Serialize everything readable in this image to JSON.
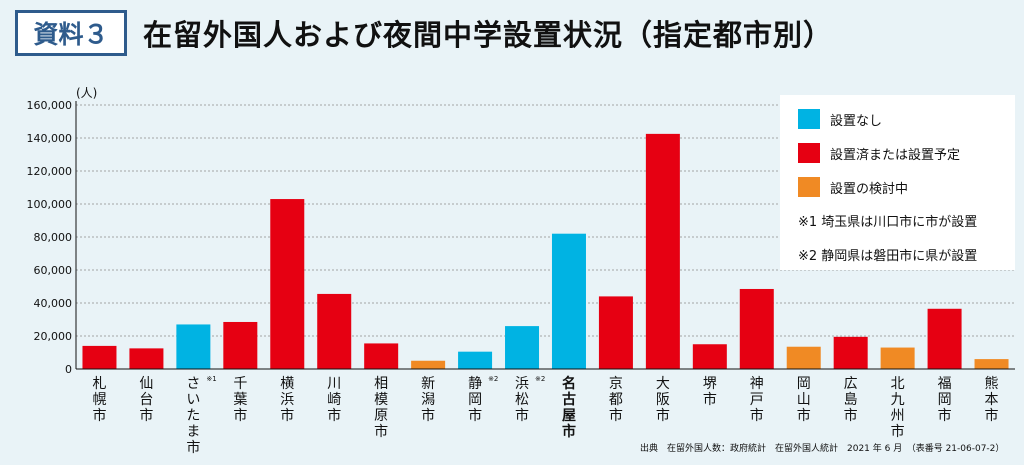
{
  "header": {
    "tag": "資料３",
    "title": "在留外国人および夜間中学設置状況（指定都市別）"
  },
  "legend": {
    "items": [
      {
        "label": "設置なし",
        "color": "#00b3e3"
      },
      {
        "label": "設置済または設置予定",
        "color": "#e60012"
      },
      {
        "label": "設置の検討中",
        "color": "#f08a24"
      }
    ],
    "note1": "※1 埼玉県は川口市に市が設置",
    "note2": "※2 静岡県は磐田市に県が設置"
  },
  "source": "出典　在留外国人数：政府統計　在留外国人統計　2021 年 6 月　（表番号 21-06-07-2）",
  "chart_data": {
    "type": "bar",
    "yunit": "(人)",
    "ylim": [
      0,
      160000
    ],
    "yticks": [
      "0",
      "20,000",
      "40,000",
      "60,000",
      "80,000",
      "100,000",
      "120,000",
      "140,000",
      "160,000"
    ],
    "categories": [
      "札幌市",
      "仙台市",
      "さいたま市",
      "千葉市",
      "横浜市",
      "川崎市",
      "相模原市",
      "新潟市",
      "静岡市",
      "浜松市",
      "名古屋市",
      "京都市",
      "大阪市",
      "堺市",
      "神戸市",
      "岡山市",
      "広島市",
      "北九州市",
      "福岡市",
      "熊本市"
    ],
    "category_notes": [
      "",
      "",
      "※1",
      "",
      "",
      "",
      "",
      "",
      "※2",
      "※2",
      "",
      "",
      "",
      "",
      "",
      "",
      "",
      "",
      "",
      ""
    ],
    "values": [
      14000,
      12500,
      27000,
      28500,
      103000,
      45500,
      15500,
      5000,
      10500,
      26000,
      82000,
      44000,
      142500,
      15000,
      48500,
      13500,
      19500,
      13000,
      36500,
      6000
    ],
    "status": [
      "設置済または設置予定",
      "設置済または設置予定",
      "設置なし",
      "設置済または設置予定",
      "設置済または設置予定",
      "設置済または設置予定",
      "設置済または設置予定",
      "設置の検討中",
      "設置なし",
      "設置なし",
      "設置なし",
      "設置済または設置予定",
      "設置済または設置予定",
      "設置済または設置予定",
      "設置済または設置予定",
      "設置の検討中",
      "設置済または設置予定",
      "設置の検討中",
      "設置済または設置予定",
      "設置の検討中"
    ],
    "highlight": "名古屋市",
    "grid": true
  }
}
